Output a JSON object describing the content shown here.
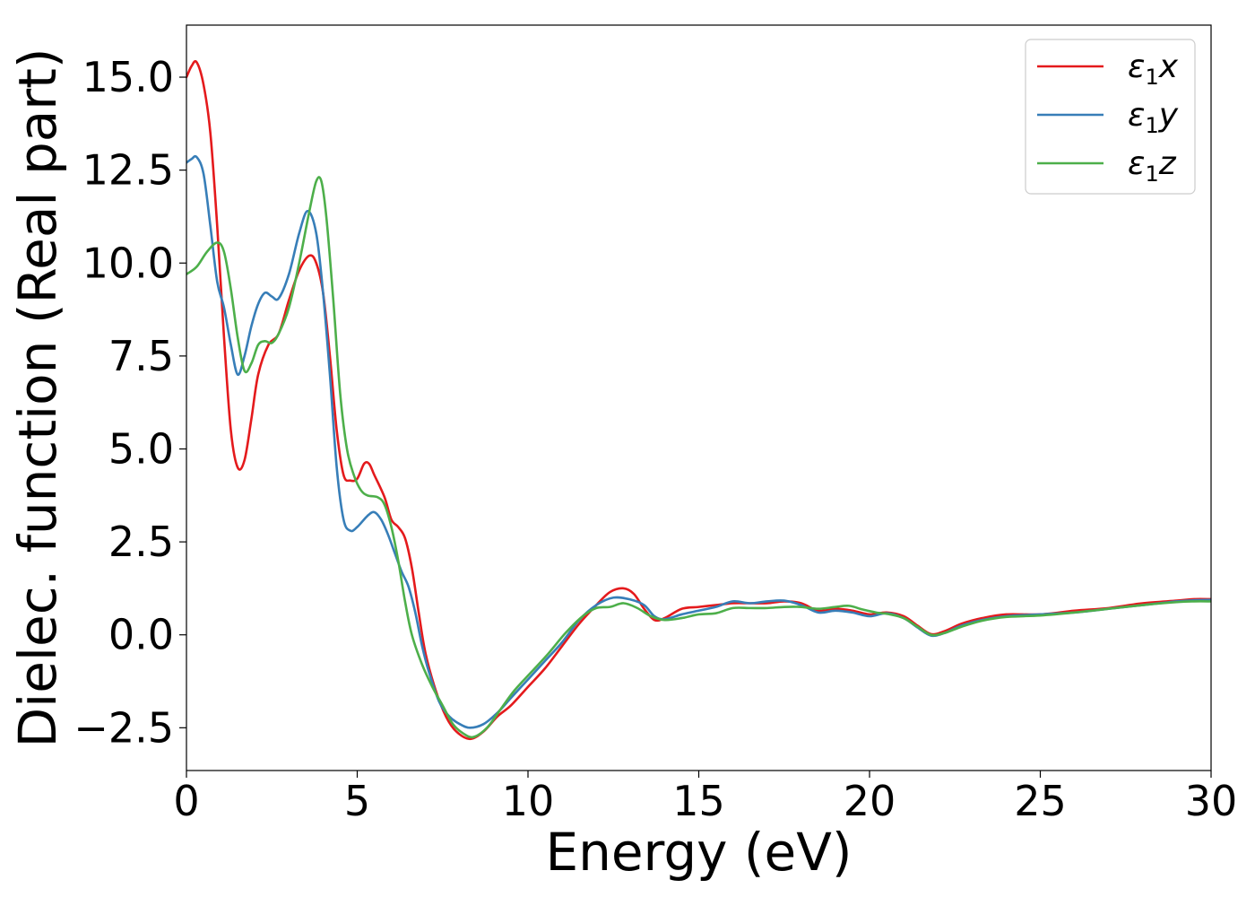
{
  "chart_data": {
    "type": "line",
    "xlabel": "Energy (eV)",
    "ylabel": "Dielec. function (Real part)",
    "xlim": [
      0,
      30
    ],
    "ylim": [
      -3.65,
      16.4
    ],
    "xticks": [
      0,
      5,
      10,
      15,
      20,
      25,
      30
    ],
    "xtick_labels": [
      "0",
      "5",
      "10",
      "15",
      "20",
      "25",
      "30"
    ],
    "yticks": [
      -2.5,
      0.0,
      2.5,
      5.0,
      7.5,
      10.0,
      12.5,
      15.0
    ],
    "ytick_labels": [
      "−2.5",
      "0.0",
      "2.5",
      "5.0",
      "7.5",
      "10.0",
      "12.5",
      "15.0"
    ],
    "grid": false,
    "legend_position": "top-right",
    "series": [
      {
        "name": "ε₁x",
        "name_main": "ε",
        "name_sub": "1",
        "name_tail": "x",
        "color": "#e41a1c",
        "points": [
          [
            0,
            15.0
          ],
          [
            0.15,
            15.3
          ],
          [
            0.3,
            15.4
          ],
          [
            0.5,
            14.8
          ],
          [
            0.7,
            13.5
          ],
          [
            0.9,
            11.0
          ],
          [
            1.1,
            8.0
          ],
          [
            1.3,
            5.5
          ],
          [
            1.5,
            4.5
          ],
          [
            1.7,
            4.7
          ],
          [
            1.9,
            5.8
          ],
          [
            2.1,
            7.0
          ],
          [
            2.4,
            7.8
          ],
          [
            2.7,
            8.1
          ],
          [
            3.0,
            9.0
          ],
          [
            3.3,
            9.8
          ],
          [
            3.6,
            10.2
          ],
          [
            3.8,
            10.0
          ],
          [
            4.0,
            9.2
          ],
          [
            4.2,
            7.5
          ],
          [
            4.4,
            5.5
          ],
          [
            4.6,
            4.3
          ],
          [
            4.8,
            4.15
          ],
          [
            5.0,
            4.2
          ],
          [
            5.2,
            4.6
          ],
          [
            5.35,
            4.6
          ],
          [
            5.5,
            4.3
          ],
          [
            5.8,
            3.7
          ],
          [
            6.0,
            3.1
          ],
          [
            6.2,
            2.9
          ],
          [
            6.4,
            2.6
          ],
          [
            6.6,
            1.8
          ],
          [
            6.8,
            0.6
          ],
          [
            7.0,
            -0.5
          ],
          [
            7.3,
            -1.5
          ],
          [
            7.6,
            -2.2
          ],
          [
            7.9,
            -2.6
          ],
          [
            8.3,
            -2.8
          ],
          [
            8.7,
            -2.6
          ],
          [
            9.1,
            -2.2
          ],
          [
            9.5,
            -1.9
          ],
          [
            10.0,
            -1.4
          ],
          [
            10.5,
            -0.9
          ],
          [
            11.0,
            -0.3
          ],
          [
            11.5,
            0.3
          ],
          [
            12.0,
            0.8
          ],
          [
            12.4,
            1.15
          ],
          [
            12.8,
            1.25
          ],
          [
            13.1,
            1.1
          ],
          [
            13.4,
            0.7
          ],
          [
            13.7,
            0.4
          ],
          [
            14.0,
            0.45
          ],
          [
            14.5,
            0.7
          ],
          [
            15.0,
            0.75
          ],
          [
            15.5,
            0.8
          ],
          [
            16.0,
            0.85
          ],
          [
            16.5,
            0.85
          ],
          [
            17.0,
            0.85
          ],
          [
            17.5,
            0.9
          ],
          [
            18.0,
            0.85
          ],
          [
            18.5,
            0.65
          ],
          [
            19.0,
            0.7
          ],
          [
            19.5,
            0.65
          ],
          [
            20.0,
            0.55
          ],
          [
            20.5,
            0.6
          ],
          [
            21.0,
            0.5
          ],
          [
            21.4,
            0.25
          ],
          [
            21.8,
            0.02
          ],
          [
            22.2,
            0.1
          ],
          [
            22.7,
            0.3
          ],
          [
            23.3,
            0.45
          ],
          [
            24.0,
            0.55
          ],
          [
            25.0,
            0.55
          ],
          [
            26.0,
            0.65
          ],
          [
            27.0,
            0.72
          ],
          [
            28.0,
            0.85
          ],
          [
            29.0,
            0.92
          ],
          [
            29.5,
            0.96
          ],
          [
            30.0,
            0.96
          ]
        ]
      },
      {
        "name": "ε₁y",
        "name_main": "ε",
        "name_sub": "1",
        "name_tail": "y",
        "color": "#377eb8",
        "points": [
          [
            0,
            12.7
          ],
          [
            0.15,
            12.8
          ],
          [
            0.3,
            12.85
          ],
          [
            0.5,
            12.4
          ],
          [
            0.7,
            11.0
          ],
          [
            0.9,
            9.5
          ],
          [
            1.1,
            8.8
          ],
          [
            1.3,
            7.8
          ],
          [
            1.5,
            7.0
          ],
          [
            1.7,
            7.5
          ],
          [
            1.9,
            8.3
          ],
          [
            2.1,
            8.9
          ],
          [
            2.3,
            9.2
          ],
          [
            2.5,
            9.1
          ],
          [
            2.7,
            9.05
          ],
          [
            3.0,
            9.7
          ],
          [
            3.3,
            10.8
          ],
          [
            3.55,
            11.4
          ],
          [
            3.8,
            10.8
          ],
          [
            4.0,
            9.2
          ],
          [
            4.2,
            7.0
          ],
          [
            4.4,
            4.5
          ],
          [
            4.6,
            3.1
          ],
          [
            4.8,
            2.8
          ],
          [
            5.0,
            2.9
          ],
          [
            5.3,
            3.2
          ],
          [
            5.5,
            3.3
          ],
          [
            5.7,
            3.1
          ],
          [
            5.9,
            2.7
          ],
          [
            6.1,
            2.2
          ],
          [
            6.3,
            1.7
          ],
          [
            6.5,
            1.3
          ],
          [
            6.7,
            0.6
          ],
          [
            6.9,
            -0.3
          ],
          [
            7.1,
            -1.0
          ],
          [
            7.4,
            -1.8
          ],
          [
            7.7,
            -2.2
          ],
          [
            8.0,
            -2.4
          ],
          [
            8.3,
            -2.5
          ],
          [
            8.7,
            -2.4
          ],
          [
            9.1,
            -2.1
          ],
          [
            9.5,
            -1.7
          ],
          [
            10.0,
            -1.2
          ],
          [
            10.5,
            -0.7
          ],
          [
            11.0,
            -0.2
          ],
          [
            11.5,
            0.4
          ],
          [
            12.0,
            0.8
          ],
          [
            12.5,
            1.0
          ],
          [
            13.0,
            0.95
          ],
          [
            13.4,
            0.8
          ],
          [
            13.7,
            0.5
          ],
          [
            14.0,
            0.42
          ],
          [
            14.5,
            0.55
          ],
          [
            15.0,
            0.65
          ],
          [
            15.5,
            0.75
          ],
          [
            16.0,
            0.9
          ],
          [
            16.5,
            0.85
          ],
          [
            17.0,
            0.9
          ],
          [
            17.5,
            0.92
          ],
          [
            18.0,
            0.8
          ],
          [
            18.5,
            0.6
          ],
          [
            19.0,
            0.65
          ],
          [
            19.5,
            0.6
          ],
          [
            20.0,
            0.5
          ],
          [
            20.5,
            0.58
          ],
          [
            21.0,
            0.45
          ],
          [
            21.4,
            0.2
          ],
          [
            21.8,
            -0.02
          ],
          [
            22.2,
            0.05
          ],
          [
            22.7,
            0.25
          ],
          [
            23.3,
            0.4
          ],
          [
            24.0,
            0.5
          ],
          [
            25.0,
            0.55
          ],
          [
            26.0,
            0.6
          ],
          [
            27.0,
            0.7
          ],
          [
            28.0,
            0.8
          ],
          [
            29.0,
            0.9
          ],
          [
            29.5,
            0.93
          ],
          [
            30.0,
            0.94
          ]
        ]
      },
      {
        "name": "ε₁z",
        "name_main": "ε",
        "name_sub": "1",
        "name_tail": "z",
        "color": "#4daf4a",
        "points": [
          [
            0,
            9.7
          ],
          [
            0.3,
            9.9
          ],
          [
            0.6,
            10.3
          ],
          [
            0.9,
            10.55
          ],
          [
            1.1,
            10.3
          ],
          [
            1.3,
            9.3
          ],
          [
            1.5,
            8.0
          ],
          [
            1.7,
            7.1
          ],
          [
            1.9,
            7.3
          ],
          [
            2.1,
            7.8
          ],
          [
            2.3,
            7.9
          ],
          [
            2.5,
            7.85
          ],
          [
            2.7,
            8.1
          ],
          [
            3.0,
            8.8
          ],
          [
            3.3,
            10.0
          ],
          [
            3.6,
            11.4
          ],
          [
            3.8,
            12.2
          ],
          [
            3.95,
            12.2
          ],
          [
            4.1,
            11.2
          ],
          [
            4.3,
            9.0
          ],
          [
            4.5,
            6.5
          ],
          [
            4.7,
            5.0
          ],
          [
            4.9,
            4.3
          ],
          [
            5.1,
            3.9
          ],
          [
            5.3,
            3.75
          ],
          [
            5.6,
            3.7
          ],
          [
            5.8,
            3.5
          ],
          [
            6.0,
            2.9
          ],
          [
            6.2,
            2.0
          ],
          [
            6.4,
            0.9
          ],
          [
            6.6,
            0.0
          ],
          [
            6.9,
            -0.8
          ],
          [
            7.2,
            -1.4
          ],
          [
            7.5,
            -1.9
          ],
          [
            7.8,
            -2.4
          ],
          [
            8.1,
            -2.65
          ],
          [
            8.4,
            -2.75
          ],
          [
            8.8,
            -2.5
          ],
          [
            9.2,
            -2.0
          ],
          [
            9.6,
            -1.5
          ],
          [
            10.1,
            -1.0
          ],
          [
            10.6,
            -0.5
          ],
          [
            11.1,
            0.05
          ],
          [
            11.6,
            0.5
          ],
          [
            12.0,
            0.72
          ],
          [
            12.4,
            0.75
          ],
          [
            12.8,
            0.85
          ],
          [
            13.2,
            0.72
          ],
          [
            13.6,
            0.5
          ],
          [
            14.0,
            0.4
          ],
          [
            14.5,
            0.45
          ],
          [
            15.0,
            0.55
          ],
          [
            15.5,
            0.58
          ],
          [
            16.0,
            0.72
          ],
          [
            16.5,
            0.72
          ],
          [
            17.0,
            0.72
          ],
          [
            17.5,
            0.75
          ],
          [
            18.0,
            0.75
          ],
          [
            18.5,
            0.7
          ],
          [
            19.0,
            0.75
          ],
          [
            19.4,
            0.78
          ],
          [
            19.8,
            0.68
          ],
          [
            20.2,
            0.6
          ],
          [
            20.6,
            0.55
          ],
          [
            21.0,
            0.45
          ],
          [
            21.4,
            0.22
          ],
          [
            21.8,
            0.0
          ],
          [
            22.2,
            0.05
          ],
          [
            22.7,
            0.22
          ],
          [
            23.3,
            0.38
          ],
          [
            24.0,
            0.48
          ],
          [
            25.0,
            0.52
          ],
          [
            26.0,
            0.6
          ],
          [
            27.0,
            0.7
          ],
          [
            28.0,
            0.8
          ],
          [
            29.0,
            0.88
          ],
          [
            29.5,
            0.9
          ],
          [
            30.0,
            0.9
          ]
        ]
      }
    ]
  }
}
